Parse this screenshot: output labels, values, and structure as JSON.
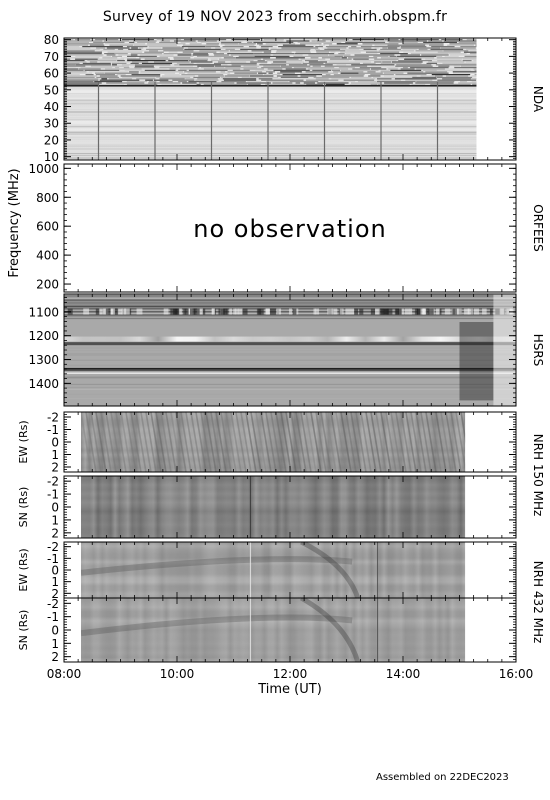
{
  "title": "Survey of 19 NOV 2023 from secchirh.obspm.fr",
  "footer": "Assembled on 22DEC2023",
  "chart_data": {
    "type": "heatmap",
    "xlabel": "Time (UT)",
    "xlim": [
      8,
      16
    ],
    "x_ticks": [
      8,
      10,
      12,
      14,
      16
    ],
    "x_tick_labels": [
      "08:00",
      "10:00",
      "12:00",
      "14:00",
      "16:00"
    ],
    "shared_ylabel": "Frequency (MHz)",
    "panels": [
      {
        "id": "nda",
        "instrument": "NDA",
        "ylim": [
          81,
          8
        ],
        "y_ticks": [
          10,
          20,
          30,
          40,
          50,
          60,
          70,
          80
        ],
        "data_start": 8.0,
        "data_end": 15.3,
        "status": "",
        "tone": "light",
        "vertical_lines": [
          8.6,
          9.6,
          10.6,
          11.6,
          12.6,
          13.6,
          14.6
        ]
      },
      {
        "id": "orfees",
        "instrument": "ORFEES",
        "ylim": [
          1030,
          145
        ],
        "y_ticks": [
          200,
          400,
          600,
          800,
          1000
        ],
        "data_start": null,
        "data_end": null,
        "status": "no observation",
        "tone": "none"
      },
      {
        "id": "hsrs",
        "instrument": "HSRS",
        "ylim": [
          1025,
          1495
        ],
        "y_ticks": [
          1100,
          1200,
          1300,
          1400
        ],
        "data_start": 8.0,
        "data_end": 16.0,
        "status": "",
        "tone": "mid"
      },
      {
        "id": "nrh150-ew",
        "instrument": "NRH 150 MHz",
        "ylabel": "EW (Rs)",
        "ylim": [
          -2.4,
          2.4
        ],
        "y_ticks": [
          -2,
          -1,
          0,
          1,
          2
        ],
        "data_start": 8.3,
        "data_end": 15.1,
        "status": "",
        "tone": "stripes"
      },
      {
        "id": "nrh150-sn",
        "instrument": "NRH 150 MHz",
        "ylabel": "SN (Rs)",
        "ylim": [
          -2.4,
          2.4
        ],
        "y_ticks": [
          -2,
          -1,
          0,
          1,
          2
        ],
        "data_start": 8.3,
        "data_end": 15.1,
        "status": "",
        "tone": "dark"
      },
      {
        "id": "nrh432-ew",
        "instrument": "NRH 432 MHz",
        "ylabel": "EW (Rs)",
        "ylim": [
          -2.4,
          2.4
        ],
        "y_ticks": [
          -2,
          -1,
          0,
          1,
          2
        ],
        "data_start": 8.3,
        "data_end": 15.1,
        "status": "",
        "tone": "soft"
      },
      {
        "id": "nrh432-sn",
        "instrument": "NRH 432 MHz",
        "ylabel": "SN (Rs)",
        "ylim": [
          -2.4,
          2.4
        ],
        "y_ticks": [
          -2,
          -1,
          0,
          1,
          2
        ],
        "data_start": 8.3,
        "data_end": 15.1,
        "status": "",
        "tone": "soft"
      }
    ],
    "grid": false,
    "colors": {
      "axis": "#000000",
      "status_text": "#a8a8a8"
    }
  }
}
